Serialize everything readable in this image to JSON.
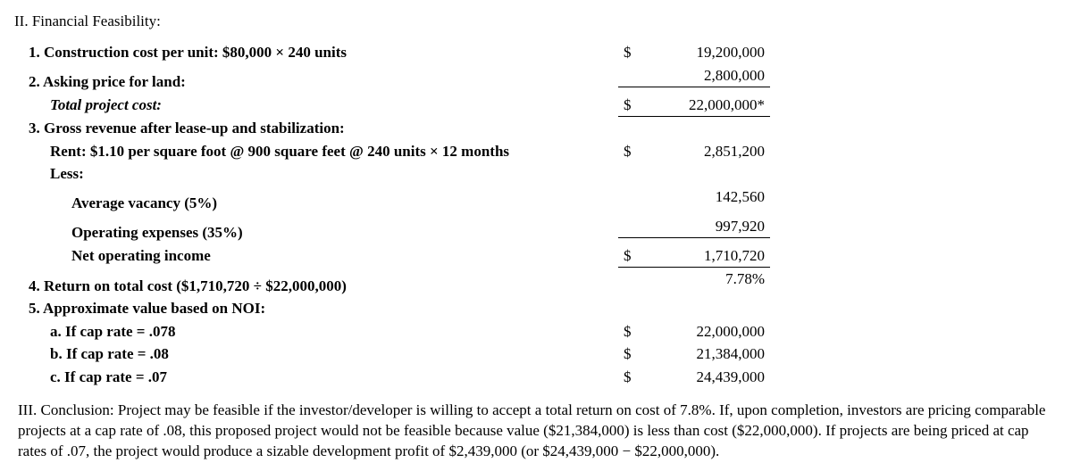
{
  "heading": "II. Financial Feasibility:",
  "rows": [
    {
      "label": "1. Construction cost per unit: $80,000 × 240 units",
      "indent": 0,
      "italic": false,
      "cur": "$",
      "val": "19,200,000",
      "underline": false
    },
    {
      "label": "2. Asking price for land:",
      "indent": 0,
      "italic": false,
      "cur": "",
      "val": "2,800,000",
      "underline": true
    },
    {
      "label": "Total project cost:",
      "indent": 1,
      "italic": true,
      "cur": "$",
      "val": "22,000,000*",
      "underline": true
    },
    {
      "label": "3. Gross revenue after lease-up and stabilization:",
      "indent": 0,
      "italic": false,
      "cur": "",
      "val": "",
      "underline": false
    },
    {
      "label": "Rent: $1.10 per square foot @ 900 square feet @ 240 units × 12 months",
      "indent": 1,
      "italic": false,
      "cur": "$",
      "val": "2,851,200",
      "underline": false
    },
    {
      "label": "Less:",
      "indent": 1,
      "italic": false,
      "cur": "",
      "val": "",
      "underline": false
    },
    {
      "label": "Average vacancy (5%)",
      "indent": 2,
      "italic": false,
      "cur": "",
      "val": "142,560",
      "underline": false
    },
    {
      "label": "Operating expenses (35%)",
      "indent": 2,
      "italic": false,
      "cur": "",
      "val": "997,920",
      "underline": true
    },
    {
      "label": "Net operating income",
      "indent": 2,
      "italic": false,
      "cur": "$",
      "val": "1,710,720",
      "underline": true
    },
    {
      "label": "4. Return on total cost ($1,710,720 ÷ $22,000,000)",
      "indent": 0,
      "italic": false,
      "cur": "",
      "val": "7.78%",
      "underline": false
    },
    {
      "label": "5. Approximate value based on NOI:",
      "indent": 0,
      "italic": false,
      "cur": "",
      "val": "",
      "underline": false
    },
    {
      "label": "a. If cap rate = .078",
      "indent": 1,
      "italic": false,
      "cur": "$",
      "val": "22,000,000",
      "underline": false
    },
    {
      "label": "b. If cap rate = .08",
      "indent": 1,
      "italic": false,
      "cur": "$",
      "val": "21,384,000",
      "underline": false
    },
    {
      "label": "c. If cap rate = .07",
      "indent": 1,
      "italic": false,
      "cur": "$",
      "val": "24,439,000",
      "underline": false
    }
  ],
  "conclusion": "III. Conclusion: Project may be feasible if the investor/developer is willing to accept a total return on cost of 7.8%. If, upon completion, investors are pricing comparable projects at a cap rate of .08, this proposed project would not be feasible because value ($21,384,000) is less than cost ($22,000,000). If projects are being priced at cap rates of .07, the project would produce a sizable development profit of $2,439,000 (or $24,439,000 − $22,000,000)."
}
